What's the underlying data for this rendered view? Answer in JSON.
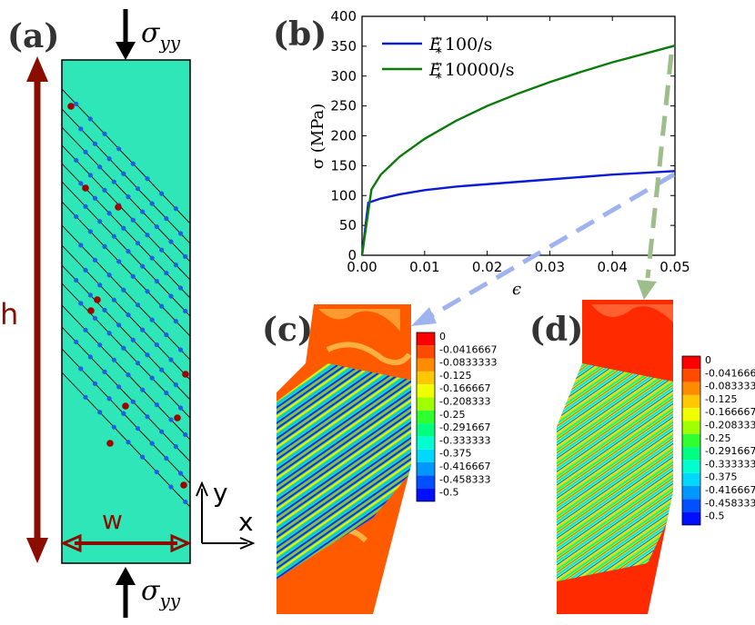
{
  "figure": {
    "panels": {
      "a": "(a)",
      "b": "(b)",
      "c": "(c)",
      "d": "(d)"
    },
    "panel_a": {
      "stress_label": "σ",
      "stress_subscript": "yy",
      "height_label": "h",
      "width_label": "w",
      "axis_y": "y",
      "axis_x": "x",
      "block_color": "#2ee6b8",
      "arrow_color": "#8b0d00",
      "dislocation_color": "#1f5fe0",
      "defect_color": "#a00000"
    },
    "colorbar": {
      "labels": [
        "0",
        "-0.0416667",
        "-0.0833333",
        "-0.125",
        "-0.166667",
        "-0.208333",
        "-0.25",
        "-0.291667",
        "-0.333333",
        "-0.375",
        "-0.416667",
        "-0.458333",
        "-0.5"
      ],
      "colors": [
        "#ff0000",
        "#ff4a00",
        "#ff8c00",
        "#ffc800",
        "#f0ff00",
        "#a0ff00",
        "#30ff30",
        "#00ff80",
        "#00ffd0",
        "#00d8ff",
        "#0098ff",
        "#0050ff",
        "#0010ff"
      ]
    }
  },
  "chart_data": {
    "type": "line",
    "title": "",
    "xlabel": "ϵ",
    "ylabel": "σ (MPa)",
    "xlim": [
      0,
      0.05
    ],
    "ylim": [
      0,
      400
    ],
    "xticks": [
      "0.00",
      "0.01",
      "0.02",
      "0.03",
      "0.04",
      "0.05"
    ],
    "yticks": [
      "0",
      "50",
      "100",
      "150",
      "200",
      "250",
      "300",
      "350",
      "400"
    ],
    "legend_position": "top-left",
    "series": [
      {
        "name": "100/s",
        "legend_prefix": "E",
        "color": "#0b1ad6",
        "x": [
          0,
          0.001,
          0.003,
          0.006,
          0.01,
          0.015,
          0.02,
          0.025,
          0.03,
          0.035,
          0.04,
          0.045,
          0.05
        ],
        "y": [
          0,
          88,
          95,
          102,
          109,
          115,
          119,
          123,
          127,
          131,
          135,
          138,
          141
        ]
      },
      {
        "name": "10000/s",
        "legend_prefix": "E",
        "color": "#0d7a0d",
        "x": [
          0,
          0.0015,
          0.003,
          0.006,
          0.01,
          0.015,
          0.02,
          0.025,
          0.03,
          0.035,
          0.04,
          0.045,
          0.05
        ],
        "y": [
          0,
          110,
          135,
          165,
          195,
          225,
          250,
          271,
          290,
          307,
          323,
          337,
          351
        ]
      }
    ]
  }
}
